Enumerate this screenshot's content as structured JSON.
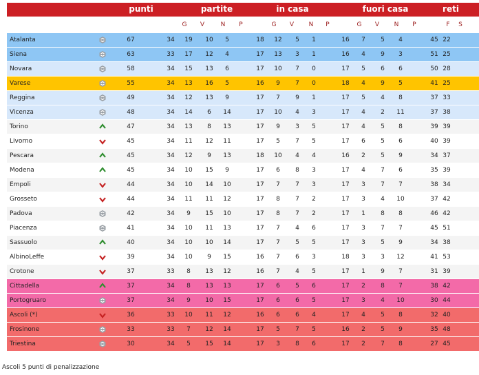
{
  "header": {
    "points": "punti",
    "matches": "partite",
    "home": "in casa",
    "away": "fuori casa",
    "goals": "reti"
  },
  "subheaders": [
    "G",
    "V",
    "N",
    "P",
    "G",
    "V",
    "N",
    "P",
    "G",
    "V",
    "N",
    "P",
    "F",
    "S"
  ],
  "colors": {
    "header": "#cc1f24",
    "promotion": "#8ec6f4",
    "playoff_light": "#d7e8fb",
    "playoff_orange": "#ffc400",
    "stripe_light": "#f4f4f4",
    "white": "#ffffff",
    "relegation_pink": "#f36aa8",
    "relegation_red": "#f26b6b",
    "up_green": "#2f8d2f",
    "down_red": "#c52222",
    "same_gray": "#9aa0a6"
  },
  "teams": [
    {
      "name": "Atalanta",
      "trend": "same",
      "points": "67",
      "g": "34",
      "v": "19",
      "n": "10",
      "p": "5",
      "hg": "18",
      "hv": "12",
      "hn": "5",
      "hp": "1",
      "ag": "16",
      "av": "7",
      "an": "5",
      "ap": "4",
      "gf": "45",
      "gs": "22",
      "bg": "promotion"
    },
    {
      "name": "Siena",
      "trend": "same",
      "points": "63",
      "g": "33",
      "v": "17",
      "n": "12",
      "p": "4",
      "hg": "17",
      "hv": "13",
      "hn": "3",
      "hp": "1",
      "ag": "16",
      "av": "4",
      "an": "9",
      "ap": "3",
      "gf": "51",
      "gs": "25",
      "bg": "promotion"
    },
    {
      "name": "Novara",
      "trend": "same",
      "points": "58",
      "g": "34",
      "v": "15",
      "n": "13",
      "p": "6",
      "hg": "17",
      "hv": "10",
      "hn": "7",
      "hp": "0",
      "ag": "17",
      "av": "5",
      "an": "6",
      "ap": "6",
      "gf": "50",
      "gs": "28",
      "bg": "playoff_light"
    },
    {
      "name": "Varese",
      "trend": "same",
      "points": "55",
      "g": "34",
      "v": "13",
      "n": "16",
      "p": "5",
      "hg": "16",
      "hv": "9",
      "hn": "7",
      "hp": "0",
      "ag": "18",
      "av": "4",
      "an": "9",
      "ap": "5",
      "gf": "41",
      "gs": "25",
      "bg": "playoff_orange"
    },
    {
      "name": "Reggina",
      "trend": "same",
      "points": "49",
      "g": "34",
      "v": "12",
      "n": "13",
      "p": "9",
      "hg": "17",
      "hv": "7",
      "hn": "9",
      "hp": "1",
      "ag": "17",
      "av": "5",
      "an": "4",
      "ap": "8",
      "gf": "37",
      "gs": "33",
      "bg": "playoff_light"
    },
    {
      "name": "Vicenza",
      "trend": "same",
      "points": "48",
      "g": "34",
      "v": "14",
      "n": "6",
      "p": "14",
      "hg": "17",
      "hv": "10",
      "hn": "4",
      "hp": "3",
      "ag": "17",
      "av": "4",
      "an": "2",
      "ap": "11",
      "gf": "37",
      "gs": "38",
      "bg": "playoff_light"
    },
    {
      "name": "Torino",
      "trend": "up",
      "points": "47",
      "g": "34",
      "v": "13",
      "n": "8",
      "p": "13",
      "hg": "17",
      "hv": "9",
      "hn": "3",
      "hp": "5",
      "ag": "17",
      "av": "4",
      "an": "5",
      "ap": "8",
      "gf": "39",
      "gs": "39",
      "bg": "stripe_light"
    },
    {
      "name": "Livorno",
      "trend": "down",
      "points": "45",
      "g": "34",
      "v": "11",
      "n": "12",
      "p": "11",
      "hg": "17",
      "hv": "5",
      "hn": "7",
      "hp": "5",
      "ag": "17",
      "av": "6",
      "an": "5",
      "ap": "6",
      "gf": "40",
      "gs": "39",
      "bg": "white"
    },
    {
      "name": "Pescara",
      "trend": "up",
      "points": "45",
      "g": "34",
      "v": "12",
      "n": "9",
      "p": "13",
      "hg": "18",
      "hv": "10",
      "hn": "4",
      "hp": "4",
      "ag": "16",
      "av": "2",
      "an": "5",
      "ap": "9",
      "gf": "34",
      "gs": "37",
      "bg": "stripe_light"
    },
    {
      "name": "Modena",
      "trend": "up",
      "points": "45",
      "g": "34",
      "v": "10",
      "n": "15",
      "p": "9",
      "hg": "17",
      "hv": "6",
      "hn": "8",
      "hp": "3",
      "ag": "17",
      "av": "4",
      "an": "7",
      "ap": "6",
      "gf": "35",
      "gs": "39",
      "bg": "white"
    },
    {
      "name": "Empoli",
      "trend": "down",
      "points": "44",
      "g": "34",
      "v": "10",
      "n": "14",
      "p": "10",
      "hg": "17",
      "hv": "7",
      "hn": "7",
      "hp": "3",
      "ag": "17",
      "av": "3",
      "an": "7",
      "ap": "7",
      "gf": "38",
      "gs": "34",
      "bg": "stripe_light"
    },
    {
      "name": "Grosseto",
      "trend": "down",
      "points": "44",
      "g": "34",
      "v": "11",
      "n": "11",
      "p": "12",
      "hg": "17",
      "hv": "8",
      "hn": "7",
      "hp": "2",
      "ag": "17",
      "av": "3",
      "an": "4",
      "ap": "10",
      "gf": "37",
      "gs": "42",
      "bg": "white"
    },
    {
      "name": "Padova",
      "trend": "same",
      "points": "42",
      "g": "34",
      "v": "9",
      "n": "15",
      "p": "10",
      "hg": "17",
      "hv": "8",
      "hn": "7",
      "hp": "2",
      "ag": "17",
      "av": "1",
      "an": "8",
      "ap": "8",
      "gf": "46",
      "gs": "42",
      "bg": "stripe_light"
    },
    {
      "name": "Piacenza",
      "trend": "same",
      "points": "41",
      "g": "34",
      "v": "10",
      "n": "11",
      "p": "13",
      "hg": "17",
      "hv": "7",
      "hn": "4",
      "hp": "6",
      "ag": "17",
      "av": "3",
      "an": "7",
      "ap": "7",
      "gf": "45",
      "gs": "51",
      "bg": "white"
    },
    {
      "name": "Sassuolo",
      "trend": "up",
      "points": "40",
      "g": "34",
      "v": "10",
      "n": "10",
      "p": "14",
      "hg": "17",
      "hv": "7",
      "hn": "5",
      "hp": "5",
      "ag": "17",
      "av": "3",
      "an": "5",
      "ap": "9",
      "gf": "34",
      "gs": "38",
      "bg": "stripe_light"
    },
    {
      "name": "AlbinoLeffe",
      "trend": "down",
      "points": "39",
      "g": "34",
      "v": "10",
      "n": "9",
      "p": "15",
      "hg": "16",
      "hv": "7",
      "hn": "6",
      "hp": "3",
      "ag": "18",
      "av": "3",
      "an": "3",
      "ap": "12",
      "gf": "41",
      "gs": "53",
      "bg": "white"
    },
    {
      "name": "Crotone",
      "trend": "down",
      "points": "37",
      "g": "33",
      "v": "8",
      "n": "13",
      "p": "12",
      "hg": "16",
      "hv": "7",
      "hn": "4",
      "hp": "5",
      "ag": "17",
      "av": "1",
      "an": "9",
      "ap": "7",
      "gf": "31",
      "gs": "39",
      "bg": "stripe_light"
    },
    {
      "name": "Cittadella",
      "trend": "up",
      "points": "37",
      "g": "34",
      "v": "8",
      "n": "13",
      "p": "13",
      "hg": "17",
      "hv": "6",
      "hn": "5",
      "hp": "6",
      "ag": "17",
      "av": "2",
      "an": "8",
      "ap": "7",
      "gf": "38",
      "gs": "42",
      "bg": "relegation_pink"
    },
    {
      "name": "Portogruaro",
      "trend": "same",
      "points": "37",
      "g": "34",
      "v": "9",
      "n": "10",
      "p": "15",
      "hg": "17",
      "hv": "6",
      "hn": "6",
      "hp": "5",
      "ag": "17",
      "av": "3",
      "an": "4",
      "ap": "10",
      "gf": "30",
      "gs": "44",
      "bg": "relegation_pink"
    },
    {
      "name": "Ascoli  (*)",
      "trend": "down",
      "points": "36",
      "g": "33",
      "v": "10",
      "n": "11",
      "p": "12",
      "hg": "16",
      "hv": "6",
      "hn": "6",
      "hp": "4",
      "ag": "17",
      "av": "4",
      "an": "5",
      "ap": "8",
      "gf": "32",
      "gs": "40",
      "bg": "relegation_red"
    },
    {
      "name": "Frosinone",
      "trend": "same",
      "points": "33",
      "g": "33",
      "v": "7",
      "n": "12",
      "p": "14",
      "hg": "17",
      "hv": "5",
      "hn": "7",
      "hp": "5",
      "ag": "16",
      "av": "2",
      "an": "5",
      "ap": "9",
      "gf": "35",
      "gs": "48",
      "bg": "relegation_red"
    },
    {
      "name": "Triestina",
      "trend": "same",
      "points": "30",
      "g": "34",
      "v": "5",
      "n": "15",
      "p": "14",
      "hg": "17",
      "hv": "3",
      "hn": "8",
      "hp": "6",
      "ag": "17",
      "av": "2",
      "an": "7",
      "ap": "8",
      "gf": "27",
      "gs": "45",
      "bg": "relegation_red"
    }
  ],
  "note": "Ascoli 5 punti di penalizzazione"
}
